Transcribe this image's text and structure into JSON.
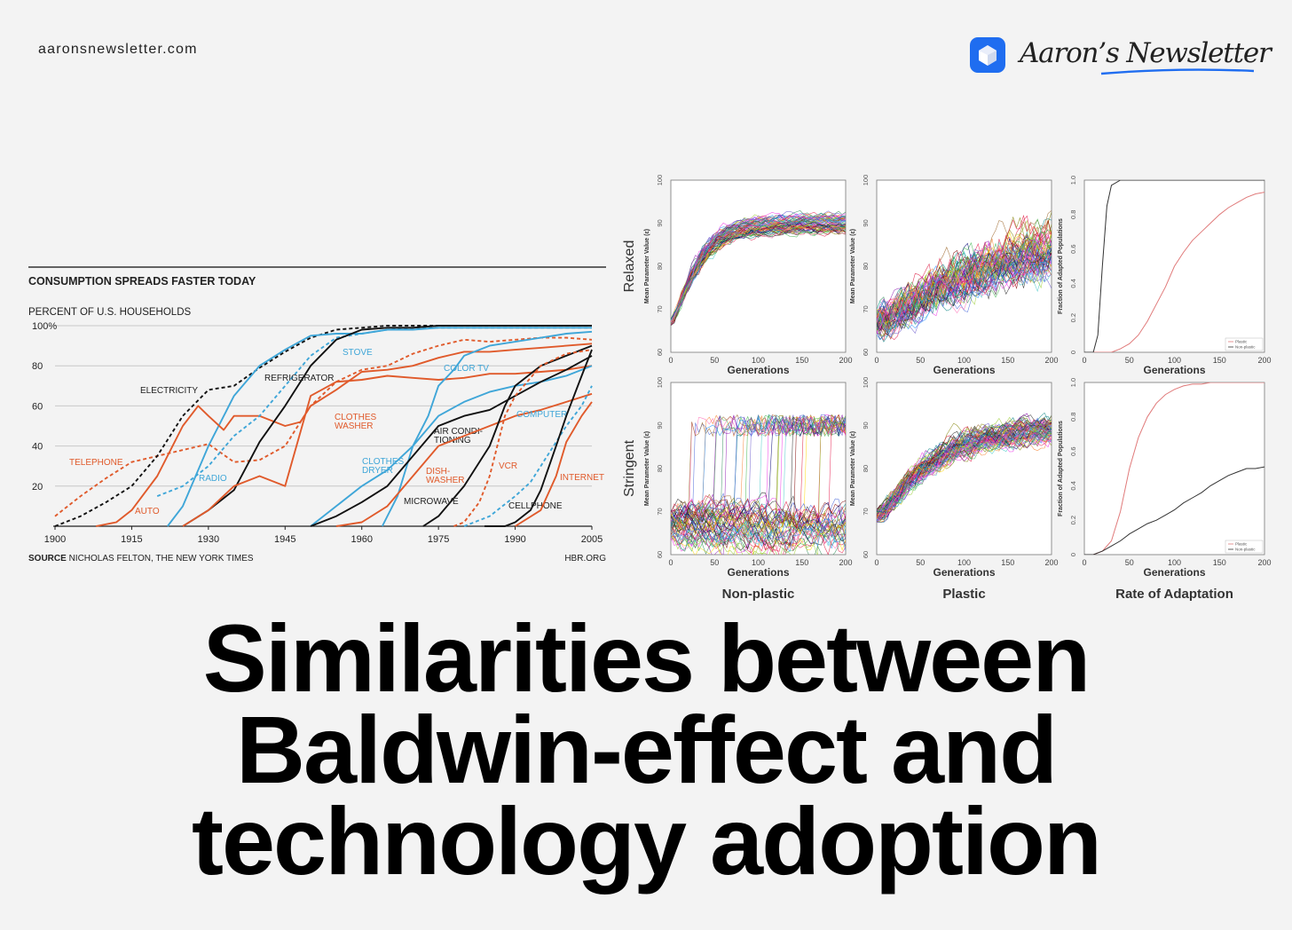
{
  "site_url": "aaronsnewsletter.com",
  "brand": {
    "name": "Aaron’s Newsletter",
    "logo_icon": "white-cube-icon",
    "logo_color": "#1f6df0"
  },
  "headline": [
    "Similarities between",
    "Baldwin-effect and",
    "technology adoption"
  ],
  "chart_data": [
    {
      "type": "line",
      "title": "CONSUMPTION SPREADS FASTER TODAY",
      "ylabel": "PERCENT OF U.S. HOUSEHOLDS",
      "xlim": [
        1900,
        2005
      ],
      "ylim": [
        0,
        100
      ],
      "xticks": [
        "1900",
        "1915",
        "1930",
        "1945",
        "1960",
        "1975",
        "1990",
        "2005"
      ],
      "yticks": [
        "20",
        "40",
        "60",
        "80",
        "100%"
      ],
      "source_label": "SOURCE",
      "source_text": "NICHOLAS FELTON, THE NEW YORK TIMES",
      "credit": "HBR.ORG",
      "series": [
        {
          "name": "TELEPHONE",
          "color": "#e05a2b",
          "dash": true,
          "x": [
            1900,
            1905,
            1910,
            1915,
            1920,
            1925,
            1930,
            1935,
            1940,
            1945,
            1950,
            1955,
            1960,
            1965,
            1970,
            1975,
            1980,
            1985,
            1990,
            1995,
            2000,
            2005
          ],
          "y": [
            5,
            15,
            24,
            32,
            35,
            38,
            41,
            32,
            33,
            40,
            60,
            72,
            78,
            80,
            86,
            90,
            93,
            92,
            93,
            94,
            94,
            93
          ]
        },
        {
          "name": "ELECTRICITY",
          "color": "#111111",
          "dash": true,
          "x": [
            1900,
            1905,
            1910,
            1915,
            1920,
            1925,
            1930,
            1935,
            1940,
            1945,
            1950,
            1955,
            1960,
            1965,
            1970,
            1975,
            1980,
            1985,
            1990,
            1995,
            2000,
            2005
          ],
          "y": [
            0,
            5,
            12,
            20,
            35,
            55,
            68,
            70,
            79,
            87,
            94,
            98,
            99,
            100,
            100,
            100,
            100,
            100,
            100,
            100,
            100,
            100
          ]
        },
        {
          "name": "RADIO",
          "color": "#3fa6d8",
          "dash": false,
          "x": [
            1922,
            1925,
            1930,
            1935,
            1940,
            1945,
            1950,
            1955,
            1960,
            1965,
            1970,
            1975,
            1980,
            1985,
            1990,
            1995,
            2000,
            2005
          ],
          "y": [
            0,
            10,
            40,
            65,
            80,
            88,
            95,
            96,
            96,
            98,
            98,
            99,
            99,
            99,
            99,
            99,
            99,
            99
          ]
        },
        {
          "name": "AUTO",
          "color": "#e05a2b",
          "dash": false,
          "x": [
            1908,
            1912,
            1915,
            1920,
            1925,
            1928,
            1930,
            1933,
            1935,
            1940,
            1945,
            1948,
            1950,
            1955,
            1960,
            1965,
            1970,
            1975,
            1980,
            1985,
            1990,
            1995,
            2000,
            2005
          ],
          "y": [
            0,
            2,
            8,
            25,
            50,
            60,
            55,
            48,
            55,
            55,
            50,
            52,
            60,
            68,
            77,
            78,
            80,
            84,
            87,
            87,
            88,
            89,
            90,
            91
          ]
        },
        {
          "name": "STOVE",
          "color": "#3fa6d8",
          "dash": true,
          "x": [
            1920,
            1925,
            1930,
            1935,
            1940,
            1945,
            1950,
            1955,
            1960,
            1965,
            1970,
            1975,
            1980,
            1985,
            1990,
            1995,
            2000,
            2005
          ],
          "y": [
            15,
            20,
            30,
            45,
            55,
            70,
            85,
            94,
            96,
            98,
            99,
            99,
            99,
            99,
            99,
            99,
            99,
            99
          ]
        },
        {
          "name": "REFRIGERATOR",
          "color": "#111111",
          "dash": false,
          "x": [
            1925,
            1930,
            1935,
            1940,
            1945,
            1950,
            1955,
            1960,
            1965,
            1970,
            1975,
            1980,
            1985,
            1990,
            1995,
            2000,
            2005
          ],
          "y": [
            0,
            8,
            18,
            42,
            60,
            80,
            93,
            98,
            99,
            99,
            100,
            100,
            100,
            100,
            100,
            100,
            100
          ]
        },
        {
          "name": "CLOTHES\nWASHER",
          "color": "#e05a2b",
          "dash": false,
          "x": [
            1925,
            1930,
            1935,
            1940,
            1945,
            1950,
            1955,
            1960,
            1965,
            1970,
            1975,
            1980,
            1985,
            1990,
            1995,
            2000,
            2005
          ],
          "y": [
            0,
            8,
            20,
            25,
            20,
            65,
            72,
            73,
            75,
            74,
            73,
            74,
            76,
            76,
            77,
            78,
            80
          ]
        },
        {
          "name": "CLOTHES\nDRYER",
          "color": "#3fa6d8",
          "dash": false,
          "x": [
            1950,
            1955,
            1960,
            1965,
            1970,
            1975,
            1980,
            1985,
            1990,
            1995,
            2000,
            2005
          ],
          "y": [
            0,
            10,
            20,
            28,
            40,
            55,
            62,
            67,
            70,
            72,
            75,
            80
          ]
        },
        {
          "name": "COLOR TV",
          "color": "#3fa6d8",
          "dash": false,
          "x": [
            1964,
            1967,
            1970,
            1973,
            1975,
            1978,
            1980,
            1985,
            1990,
            1995,
            2000,
            2005
          ],
          "y": [
            0,
            15,
            40,
            55,
            70,
            78,
            85,
            90,
            92,
            94,
            96,
            97
          ]
        },
        {
          "name": "AIR CONDI-\nTIONING",
          "color": "#111111",
          "dash": false,
          "x": [
            1950,
            1955,
            1960,
            1965,
            1970,
            1975,
            1980,
            1985,
            1990,
            1995,
            2000,
            2005
          ],
          "y": [
            0,
            5,
            12,
            20,
            35,
            50,
            55,
            58,
            65,
            72,
            78,
            85
          ]
        },
        {
          "name": "DISH-\nWASHER",
          "color": "#e05a2b",
          "dash": false,
          "x": [
            1955,
            1960,
            1965,
            1970,
            1975,
            1980,
            1985,
            1990,
            1995,
            2000,
            2005
          ],
          "y": [
            0,
            2,
            10,
            25,
            40,
            45,
            50,
            55,
            58,
            62,
            66
          ]
        },
        {
          "name": "MICROWAVE",
          "color": "#111111",
          "dash": false,
          "x": [
            1972,
            1975,
            1980,
            1985,
            1988,
            1990,
            1995,
            2000,
            2005
          ],
          "y": [
            0,
            5,
            20,
            40,
            60,
            70,
            80,
            85,
            90
          ]
        },
        {
          "name": "VCR",
          "color": "#e05a2b",
          "dash": true,
          "x": [
            1978,
            1980,
            1983,
            1985,
            1988,
            1990,
            1995,
            2000,
            2005
          ],
          "y": [
            0,
            2,
            12,
            25,
            55,
            65,
            80,
            86,
            88
          ]
        },
        {
          "name": "COMPUTER",
          "color": "#3fa6d8",
          "dash": true,
          "x": [
            1980,
            1985,
            1990,
            1993,
            1995,
            1998,
            2000,
            2003,
            2005
          ],
          "y": [
            0,
            5,
            15,
            22,
            30,
            42,
            50,
            60,
            70
          ]
        },
        {
          "name": "CELLPHONE",
          "color": "#111111",
          "dash": false,
          "x": [
            1984,
            1988,
            1990,
            1993,
            1995,
            1998,
            2000,
            2003,
            2005
          ],
          "y": [
            0,
            0,
            2,
            8,
            18,
            40,
            55,
            75,
            88
          ]
        },
        {
          "name": "INTERNET",
          "color": "#e05a2b",
          "dash": false,
          "x": [
            1990,
            1995,
            1998,
            2000,
            2003,
            2005
          ],
          "y": [
            0,
            8,
            25,
            42,
            55,
            62
          ]
        }
      ]
    },
    {
      "type": "line",
      "title": "Non-plastic",
      "row_label": "Relaxed",
      "xlabel": "Generations",
      "ylabel": "Mean Parameter Value (ε)",
      "xlim": [
        0,
        200
      ],
      "ylim": [
        60,
        100
      ],
      "xticks": [
        "0",
        "50",
        "100",
        "150",
        "200"
      ],
      "yticks": [
        "60",
        "70",
        "80",
        "90",
        "100"
      ],
      "runs": 70,
      "start": 67,
      "plateau": 90,
      "rate": 25,
      "noise": 1.5
    },
    {
      "type": "line",
      "title": "Plastic",
      "row_label": "Relaxed",
      "xlabel": "Generations",
      "ylabel": "Mean Parameter Value (ε)",
      "xlim": [
        0,
        200
      ],
      "ylim": [
        60,
        100
      ],
      "xticks": [
        "0",
        "50",
        "100",
        "150",
        "200"
      ],
      "yticks": [
        "60",
        "70",
        "80",
        "90",
        "100"
      ],
      "runs": 70,
      "start": 67,
      "plateau": 92,
      "rate": 170,
      "noise": 6
    },
    {
      "type": "line",
      "title": "Rate of Adaptation",
      "row_label": "Relaxed",
      "xlabel": "Generations",
      "ylabel": "Fraction of Adapted Populations",
      "xlim": [
        0,
        200
      ],
      "ylim": [
        0,
        1
      ],
      "xticks": [
        "0",
        "50",
        "100",
        "150",
        "200"
      ],
      "yticks": [
        "0",
        "0.2",
        "0.4",
        "0.6",
        "0.8",
        "1.0"
      ],
      "legend": "bottom-right",
      "series": [
        {
          "name": "Plastic",
          "color": "#e07a7a",
          "x": [
            0,
            10,
            20,
            30,
            40,
            50,
            60,
            70,
            80,
            90,
            100,
            110,
            120,
            130,
            140,
            150,
            160,
            170,
            180,
            190,
            200
          ],
          "y": [
            0,
            0,
            0,
            0,
            0.02,
            0.05,
            0.1,
            0.18,
            0.28,
            0.38,
            0.5,
            0.58,
            0.65,
            0.7,
            0.75,
            0.8,
            0.84,
            0.87,
            0.9,
            0.92,
            0.93
          ]
        },
        {
          "name": "Non-plastic",
          "color": "#333333",
          "x": [
            0,
            10,
            15,
            20,
            25,
            30,
            40,
            50,
            100,
            150,
            200
          ],
          "y": [
            0,
            0,
            0.1,
            0.5,
            0.85,
            0.97,
            1,
            1,
            1,
            1,
            1
          ]
        }
      ]
    },
    {
      "type": "line",
      "title": "Non-plastic",
      "row_label": "Stringent",
      "xlabel": "Generations",
      "ylabel": "Mean Parameter Value (ε)",
      "xlim": [
        0,
        200
      ],
      "ylim": [
        60,
        100
      ],
      "xticks": [
        "0",
        "50",
        "100",
        "150",
        "200"
      ],
      "yticks": [
        "60",
        "70",
        "80",
        "90",
        "100"
      ],
      "runs": 60,
      "start": 67,
      "plateau": 90,
      "jump": true,
      "noise": 5
    },
    {
      "type": "line",
      "title": "Plastic",
      "row_label": "Stringent",
      "xlabel": "Generations",
      "ylabel": "Mean Parameter Value (ε)",
      "xlim": [
        0,
        200
      ],
      "ylim": [
        60,
        100
      ],
      "xticks": [
        "0",
        "50",
        "100",
        "150",
        "200"
      ],
      "yticks": [
        "60",
        "70",
        "80",
        "90",
        "100"
      ],
      "runs": 70,
      "start": 69,
      "plateau": 90,
      "rate": 60,
      "noise": 3
    },
    {
      "type": "line",
      "title": "Rate of Adaptation",
      "row_label": "Stringent",
      "xlabel": "Generations",
      "ylabel": "Fraction of Adapted Populations",
      "xlim": [
        0,
        200
      ],
      "ylim": [
        0,
        1
      ],
      "xticks": [
        "0",
        "50",
        "100",
        "150",
        "200"
      ],
      "yticks": [
        "0",
        "0.2",
        "0.4",
        "0.6",
        "0.8",
        "1.0"
      ],
      "legend": "bottom-right",
      "series": [
        {
          "name": "Plastic",
          "color": "#e07a7a",
          "x": [
            0,
            10,
            20,
            30,
            40,
            50,
            60,
            70,
            80,
            90,
            100,
            110,
            120,
            130,
            140,
            150,
            160,
            170,
            180,
            190,
            200
          ],
          "y": [
            0,
            0,
            0.02,
            0.08,
            0.25,
            0.5,
            0.68,
            0.8,
            0.88,
            0.93,
            0.96,
            0.98,
            0.99,
            0.99,
            1,
            1,
            1,
            1,
            1,
            1,
            1
          ]
        },
        {
          "name": "Non-plastic",
          "color": "#333333",
          "x": [
            0,
            10,
            20,
            30,
            40,
            50,
            60,
            70,
            80,
            90,
            100,
            110,
            120,
            130,
            140,
            150,
            160,
            170,
            180,
            190,
            200
          ],
          "y": [
            0,
            0,
            0.02,
            0.05,
            0.08,
            0.12,
            0.15,
            0.18,
            0.2,
            0.23,
            0.26,
            0.3,
            0.33,
            0.36,
            0.4,
            0.43,
            0.46,
            0.48,
            0.5,
            0.5,
            0.51
          ]
        }
      ]
    }
  ]
}
